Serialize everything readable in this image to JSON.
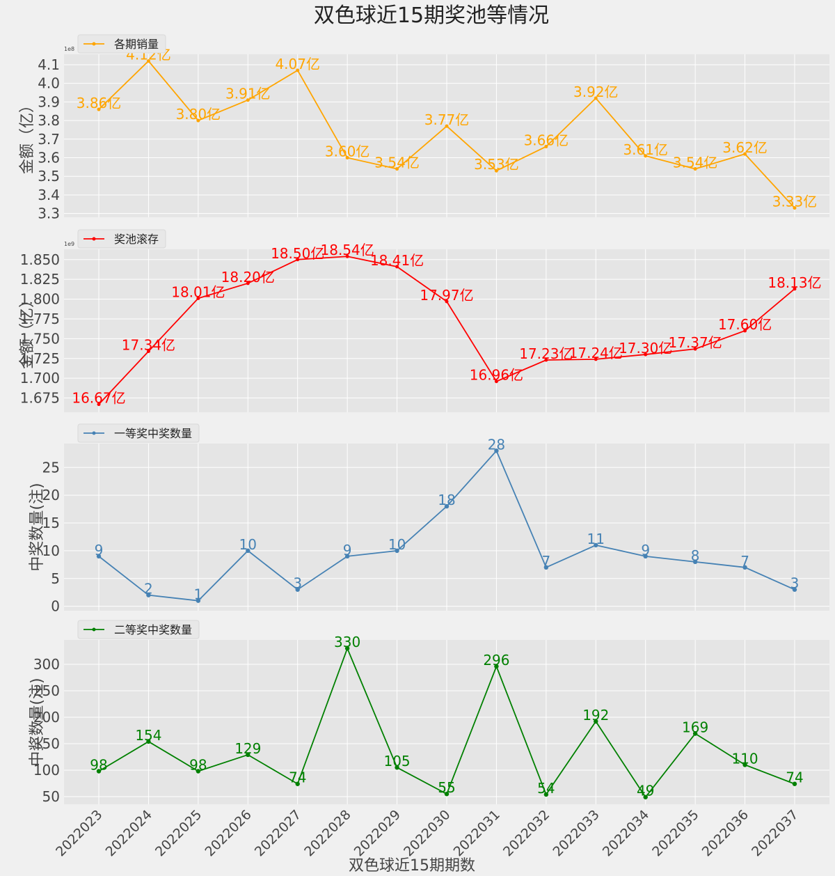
{
  "title": "双色球近15期奖池等情况",
  "chart_data": [
    {
      "type": "line",
      "y_label": "金额（亿）",
      "y_offset_label": "1e8",
      "ylim": [
        3.28,
        4.156
      ],
      "yticks": [
        3.3,
        3.4,
        3.5,
        3.6,
        3.7,
        3.8,
        3.9,
        {
          "value": 4,
          "label": "4.0"
        },
        4.1
      ],
      "grid": true,
      "legend": "upper left",
      "series": [
        {
          "name": "各期销量",
          "color": "#ffa500",
          "values": [
            3.86,
            4.12,
            3.8,
            3.91,
            4.07,
            3.6,
            3.54,
            3.77,
            3.53,
            3.66,
            3.92,
            3.61,
            3.54,
            3.62,
            3.33
          ],
          "value_labels": [
            "3.86亿",
            "4.12亿",
            "3.80亿",
            "3.91亿",
            "4.07亿",
            "3.60亿",
            "3.54亿",
            "3.77亿",
            "3.53亿",
            "3.66亿",
            "3.92亿",
            "3.61亿",
            "3.54亿",
            "3.62亿",
            "3.33亿"
          ]
        }
      ]
    },
    {
      "type": "line",
      "y_label": "金额（亿）",
      "y_offset_label": "1e9",
      "ylim": [
        1.657,
        1.863
      ],
      "yticks": [
        1.675,
        {
          "value": 1.7,
          "label": "1.700"
        },
        1.725,
        {
          "value": 1.75,
          "label": "1.750"
        },
        1.775,
        {
          "value": 1.8,
          "label": "1.800"
        },
        1.825,
        {
          "value": 1.85,
          "label": "1.850"
        }
      ],
      "grid": true,
      "legend": "upper left",
      "series": [
        {
          "name": "奖池滚存",
          "color": "#ff0000",
          "values": [
            1.667,
            1.734,
            1.801,
            1.82,
            1.85,
            1.854,
            1.841,
            1.797,
            1.696,
            1.723,
            1.724,
            1.73,
            1.737,
            1.76,
            1.813
          ],
          "value_labels": [
            "16.67亿",
            "17.34亿",
            "18.01亿",
            "18.20亿",
            "18.50亿",
            "18.54亿",
            "18.41亿",
            "17.97亿",
            "16.96亿",
            "17.23亿",
            "17.24亿",
            "17.30亿",
            "17.37亿",
            "17.60亿",
            "18.13亿"
          ]
        }
      ]
    },
    {
      "type": "line",
      "y_label": "中奖数量(注)",
      "ylim": [
        -0.8,
        29.3
      ],
      "yticks": [
        0,
        5,
        10,
        15,
        20,
        25
      ],
      "grid": true,
      "legend": "upper left",
      "series": [
        {
          "name": "一等奖中奖数量",
          "color": "#4682b4",
          "values": [
            9,
            2,
            1,
            10,
            3,
            9,
            10,
            18,
            28,
            7,
            11,
            9,
            8,
            7,
            3
          ]
        }
      ]
    },
    {
      "type": "line",
      "y_label": "中奖数量(注)",
      "x_label": "双色球近15期期数",
      "ylim": [
        35.5,
        346
      ],
      "yticks": [
        50,
        100,
        150,
        200,
        250,
        300
      ],
      "grid": true,
      "legend": "upper left",
      "categories": [
        "2022023",
        "2022024",
        "2022025",
        "2022026",
        "2022027",
        "2022028",
        "2022029",
        "2022030",
        "2022031",
        "2022032",
        "2022033",
        "2022034",
        "2022035",
        "2022036",
        "2022037"
      ],
      "series": [
        {
          "name": "二等奖中奖数量",
          "color": "#008000",
          "values": [
            98,
            154,
            98,
            129,
            74,
            330,
            105,
            55,
            296,
            54,
            192,
            49,
            169,
            110,
            74
          ]
        }
      ]
    }
  ]
}
